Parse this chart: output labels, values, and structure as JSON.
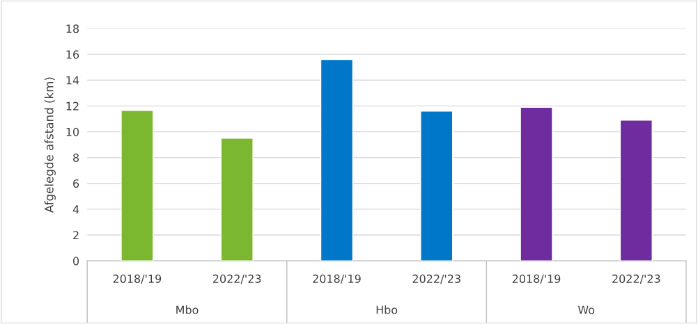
{
  "chart_data": {
    "type": "bar",
    "ylabel": "Afgelegde afstand (km)",
    "categories": [
      "2018/'19",
      "2022/'23",
      "2018/'19",
      "2022/'23",
      "2018/'19",
      "2022/'23"
    ],
    "values": [
      11.65,
      9.5,
      15.6,
      11.6,
      11.9,
      10.9
    ],
    "colors": [
      "#7cb82f",
      "#7cb82f",
      "#0077c8",
      "#0077c8",
      "#6f2c9e",
      "#6f2c9e"
    ],
    "annotations": [
      "Mbo",
      "Hbo",
      "Wo"
    ],
    "ylim": [
      0,
      18
    ],
    "yticks": [
      0,
      2,
      4,
      6,
      8,
      10,
      12,
      14,
      16,
      18
    ],
    "grid": "y",
    "legend": false
  }
}
